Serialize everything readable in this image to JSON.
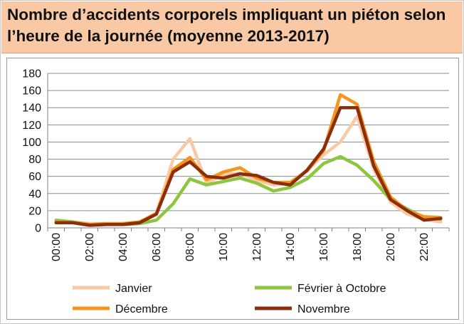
{
  "title": "Nombre d’accidents corporels impliquant un piéton selon l’heure de la journée (moyenne 2013-2017)",
  "chart_data": {
    "type": "line",
    "x": [
      0,
      1,
      2,
      3,
      4,
      5,
      6,
      7,
      8,
      9,
      10,
      11,
      12,
      13,
      14,
      15,
      16,
      17,
      18,
      19,
      20,
      21,
      22,
      23
    ],
    "x_tick_labels": [
      "00:00",
      "02:00",
      "04:00",
      "06:00",
      "08:00",
      "10:00",
      "12:00",
      "14:00",
      "16:00",
      "18:00",
      "20:00",
      "22:00"
    ],
    "x_tick_positions": [
      0,
      2,
      4,
      6,
      8,
      10,
      12,
      14,
      16,
      18,
      20,
      22
    ],
    "ylim": [
      0,
      180
    ],
    "y_ticks": [
      0,
      20,
      40,
      60,
      80,
      100,
      120,
      140,
      160,
      180
    ],
    "grid": "horizontal",
    "legend_position": "bottom",
    "series": [
      {
        "name": "Janvier",
        "color": "#f9c9a6",
        "values": [
          6,
          7,
          5,
          5,
          5,
          6,
          17,
          80,
          104,
          52,
          62,
          64,
          55,
          50,
          52,
          67,
          85,
          100,
          130,
          68,
          30,
          16,
          10,
          7
        ]
      },
      {
        "name": "Février à Octobre",
        "color": "#8cc63f",
        "values": [
          9,
          7,
          4,
          4,
          4,
          5,
          9,
          28,
          57,
          50,
          54,
          58,
          52,
          43,
          47,
          57,
          75,
          83,
          73,
          55,
          33,
          22,
          12,
          10
        ]
      },
      {
        "name": "Décembre",
        "color": "#f7941d",
        "values": [
          7,
          6,
          4,
          5,
          5,
          7,
          17,
          68,
          82,
          56,
          65,
          70,
          58,
          53,
          53,
          66,
          90,
          155,
          144,
          77,
          36,
          20,
          13,
          12
        ]
      },
      {
        "name": "Novembre",
        "color": "#8b2e0b",
        "values": [
          6,
          6,
          3,
          4,
          4,
          6,
          16,
          65,
          77,
          60,
          58,
          63,
          61,
          53,
          50,
          67,
          92,
          140,
          140,
          72,
          33,
          20,
          9,
          11
        ]
      }
    ]
  }
}
